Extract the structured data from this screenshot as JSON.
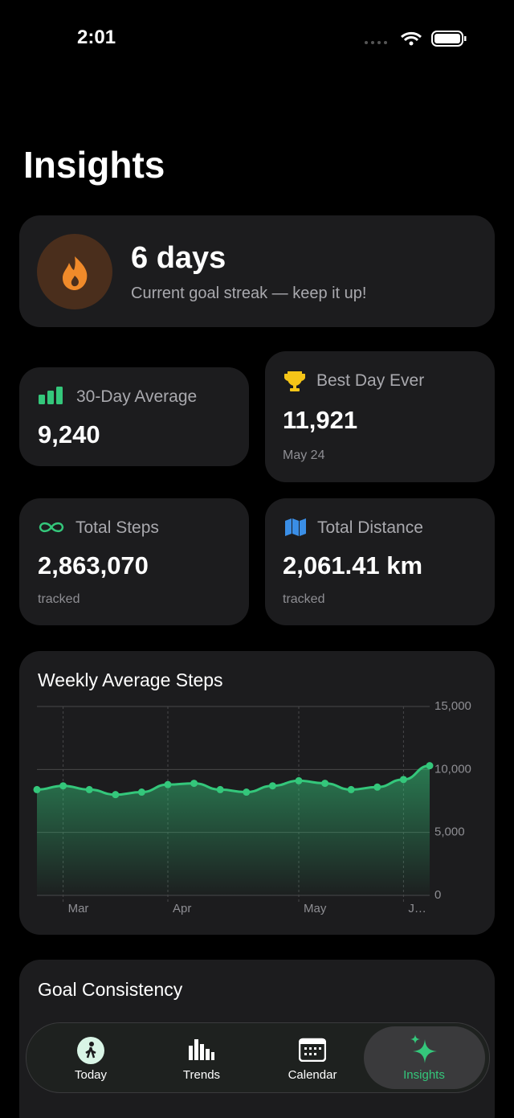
{
  "status_bar": {
    "time": "2:01"
  },
  "header": {
    "title": "Insights"
  },
  "streak": {
    "value": "6 days",
    "caption": "Current goal streak — keep it up!"
  },
  "stats": [
    {
      "label": "30-Day Average",
      "value": "9,240"
    },
    {
      "label": "Best Day Ever",
      "value": "11,921",
      "caption": "May 24"
    },
    {
      "label": "Total Steps",
      "value": "2,863,070",
      "caption": "tracked"
    },
    {
      "label": "Total Distance",
      "value": "2,061.41 km",
      "caption": "tracked"
    }
  ],
  "chart_data": {
    "type": "line",
    "title": "Weekly Average Steps",
    "categories": [
      null,
      "Mar",
      null,
      null,
      null,
      "Apr",
      null,
      null,
      null,
      null,
      "May",
      null,
      null,
      null,
      "J…",
      null
    ],
    "values": [
      8400,
      8700,
      8400,
      8000,
      8200,
      8800,
      8900,
      8400,
      8200,
      8700,
      9100,
      8900,
      8400,
      8600,
      9200,
      10300
    ],
    "color": "#34c77b",
    "area": true,
    "grid": true,
    "ylim": [
      0,
      15000
    ],
    "yticks": [
      0,
      {
        "value": 5000,
        "label": "5,000"
      },
      {
        "value": 10000,
        "label": "10,000"
      },
      {
        "value": 15000,
        "label": "15,000"
      }
    ]
  },
  "goal": {
    "title": "Goal Consistency"
  },
  "tabs": [
    {
      "label": "Today"
    },
    {
      "label": "Trends"
    },
    {
      "label": "Calendar"
    },
    {
      "label": "Insights"
    }
  ]
}
